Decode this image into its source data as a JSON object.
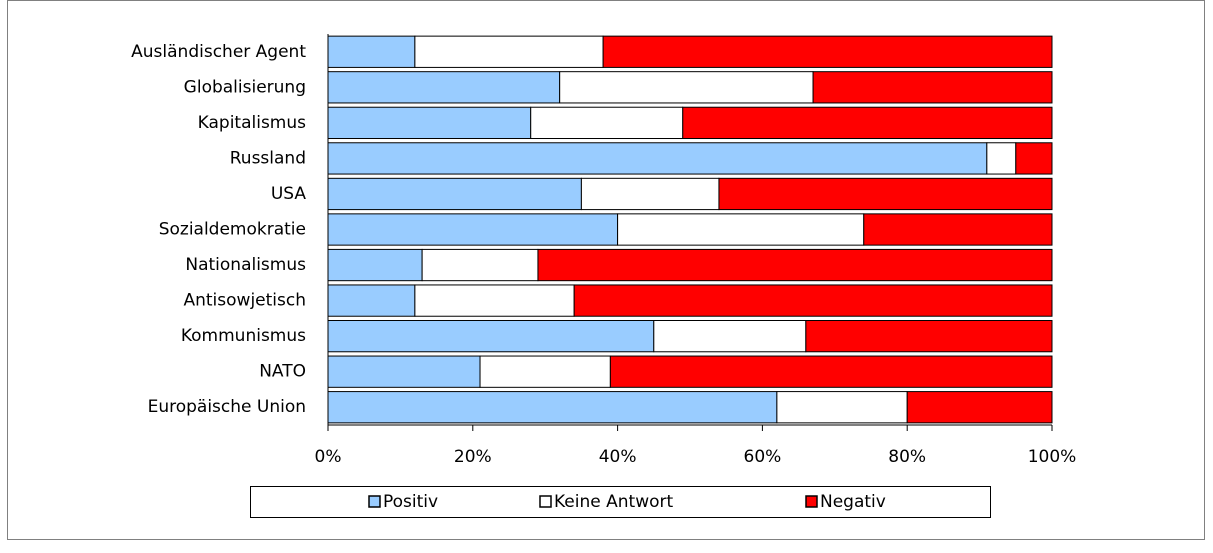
{
  "chart_data": {
    "type": "stacked_bar_horizontal",
    "categories": [
      "Ausländischer Agent",
      "Globalisierung",
      "Kapitalismus",
      "Russland",
      "USA",
      "Sozialdemokratie",
      "Nationalismus",
      "Antisowjetisch",
      "Kommunismus",
      "NATO",
      "Europäische Union"
    ],
    "series": [
      {
        "name": "Positiv",
        "color": "#99ccff",
        "values": [
          12,
          32,
          28,
          91,
          35,
          40,
          13,
          12,
          45,
          21,
          62
        ]
      },
      {
        "name": "Keine Antwort",
        "color": "#ffffff",
        "values": [
          26,
          35,
          21,
          4,
          19,
          34,
          16,
          22,
          21,
          18,
          18
        ]
      },
      {
        "name": "Negativ",
        "color": "#ff0000",
        "values": [
          62,
          33,
          51,
          5,
          46,
          26,
          71,
          66,
          34,
          61,
          20
        ]
      }
    ],
    "xlim": [
      0,
      100
    ],
    "xticks": [
      {
        "value": 0,
        "label": "0%"
      },
      {
        "value": 20,
        "label": "20%"
      },
      {
        "value": 40,
        "label": "40%"
      },
      {
        "value": 60,
        "label": "60%"
      },
      {
        "value": 80,
        "label": "80%"
      },
      {
        "value": 100,
        "label": "100%"
      }
    ],
    "legend": "bottom"
  }
}
